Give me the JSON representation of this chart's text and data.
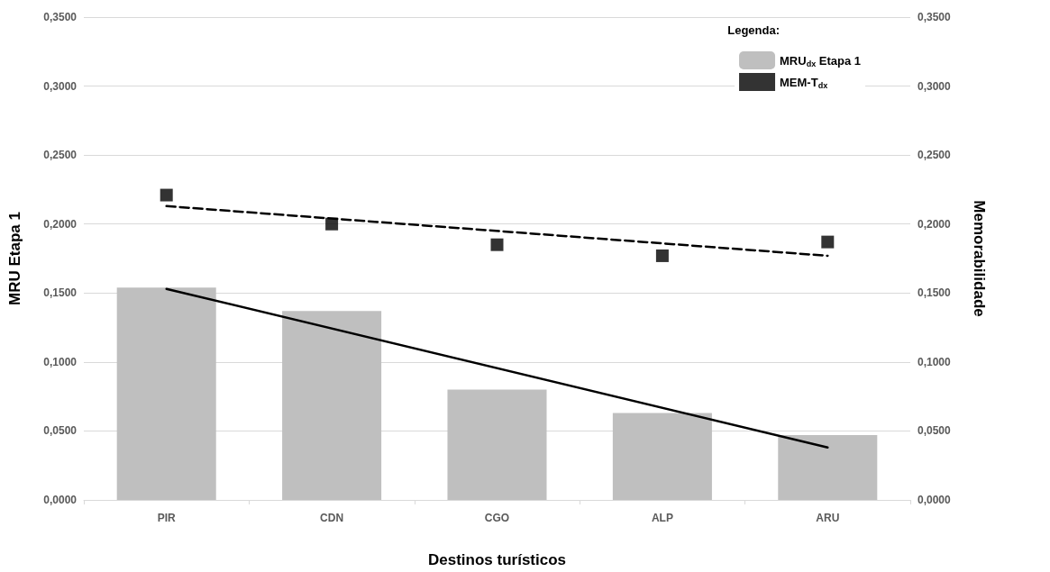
{
  "chart_data": {
    "type": "bar",
    "xlabel": "Destinos turísticos",
    "ylabel": "MRU Etapa 1",
    "y2label": "Memorabilidade",
    "legend_title": "Legenda:",
    "categories": [
      "PIR",
      "CDN",
      "CGO",
      "ALP",
      "ARU"
    ],
    "series": [
      {
        "name": "MRU$_{dx}$ Etapa 1",
        "color": "#bfbfbf",
        "values": [
          0.154,
          0.137,
          0.08,
          0.063,
          0.047
        ]
      },
      {
        "type": "scatter",
        "name": "MEM-T$_{dx}$",
        "color": "#000000",
        "axis": "y2",
        "marker": "square",
        "values": [
          0.221,
          0.2,
          0.185,
          0.177,
          0.187
        ]
      },
      {
        "type": "line",
        "color": "#000000",
        "x": [
          "PIR",
          "ARU"
        ],
        "values": [
          0.153,
          0.038
        ],
        "line_style": "solid",
        "marker": "none"
      },
      {
        "type": "line",
        "color": "#000000",
        "axis": "y2",
        "x": [
          "PIR",
          "ARU"
        ],
        "values": [
          0.213,
          0.177
        ],
        "line_style": "dashed",
        "marker": "none"
      }
    ],
    "ylim": [
      0,
      0.35
    ],
    "yticks": [
      {
        "value": 0,
        "label": "0,0000"
      },
      {
        "value": 0.05,
        "label": "0,0500"
      },
      {
        "value": 0.1,
        "label": "0,1000"
      },
      {
        "value": 0.15,
        "label": "0,1500"
      },
      {
        "value": 0.2,
        "label": "0,2000"
      },
      {
        "value": 0.25,
        "label": "0,2500"
      },
      {
        "value": 0.3,
        "label": "0,3000"
      },
      {
        "value": 0.35,
        "label": "0,3500"
      }
    ],
    "y2lim": [
      0,
      0.35
    ],
    "y2ticks": [
      {
        "value": 0,
        "label": "0,0000"
      },
      {
        "value": 0.05,
        "label": "0,0500"
      },
      {
        "value": 0.1,
        "label": "0,1000"
      },
      {
        "value": 0.15,
        "label": "0,1500"
      },
      {
        "value": 0.2,
        "label": "0,2000"
      },
      {
        "value": 0.25,
        "label": "0,2500"
      },
      {
        "value": 0.3,
        "label": "0,3000"
      },
      {
        "value": 0.35,
        "label": "0,3500"
      }
    ],
    "grid": "y",
    "legend": "top right"
  }
}
